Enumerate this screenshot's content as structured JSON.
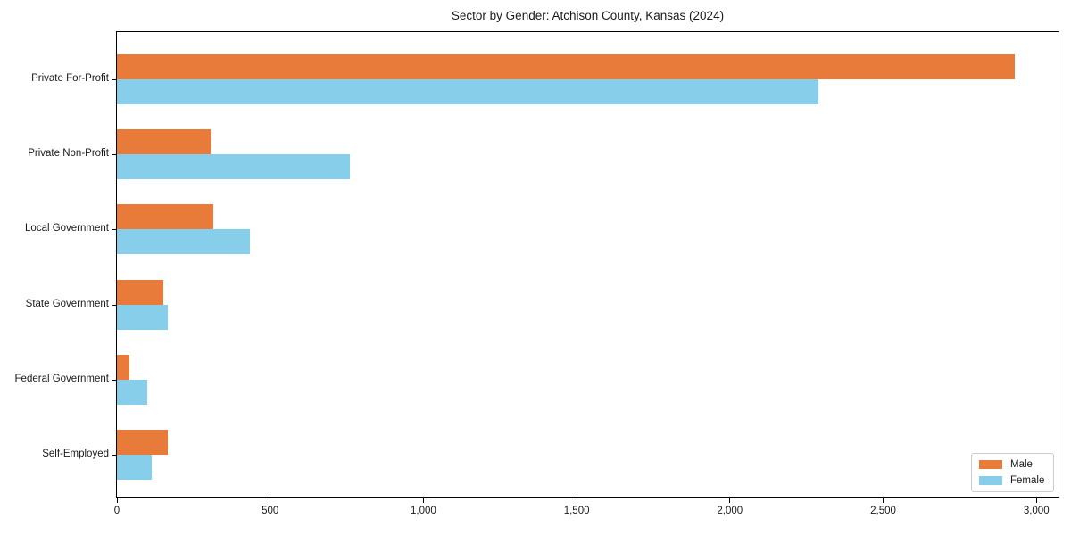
{
  "title": "Sector by Gender: Atchison County, Kansas (2024)",
  "colors": {
    "male": "#E87A3A",
    "female": "#87CEEB",
    "text": "#1a1a1a",
    "spine": "#000000",
    "legend_border": "#cccccc",
    "background": "#ffffff"
  },
  "legend": {
    "items": [
      {
        "label": "Male",
        "color": "#E87A3A"
      },
      {
        "label": "Female",
        "color": "#87CEEB"
      }
    ]
  },
  "x_axis": {
    "tick_labels": [
      "0",
      "500",
      "1,000",
      "1,500",
      "2,000",
      "2,500",
      "3,000"
    ],
    "tick_values": [
      0,
      500,
      1000,
      1500,
      2000,
      2500,
      3000
    ]
  },
  "chart_data": {
    "type": "bar",
    "orientation": "horizontal",
    "title": "Sector by Gender: Atchison County, Kansas (2024)",
    "categories": [
      "Private For-Profit",
      "Private Non-Profit",
      "Local Government",
      "State Government",
      "Federal Government",
      "Self-Employed"
    ],
    "series": [
      {
        "name": "Male",
        "color": "#E87A3A",
        "values": [
          2930,
          305,
          315,
          150,
          40,
          165
        ]
      },
      {
        "name": "Female",
        "color": "#87CEEB",
        "values": [
          2290,
          760,
          435,
          165,
          100,
          115
        ]
      }
    ],
    "xlabel": "",
    "ylabel": "",
    "xlim": [
      0,
      3078
    ],
    "x_ticks": [
      0,
      500,
      1000,
      1500,
      2000,
      2500,
      3000
    ],
    "grid": false,
    "legend_position": "lower right"
  }
}
